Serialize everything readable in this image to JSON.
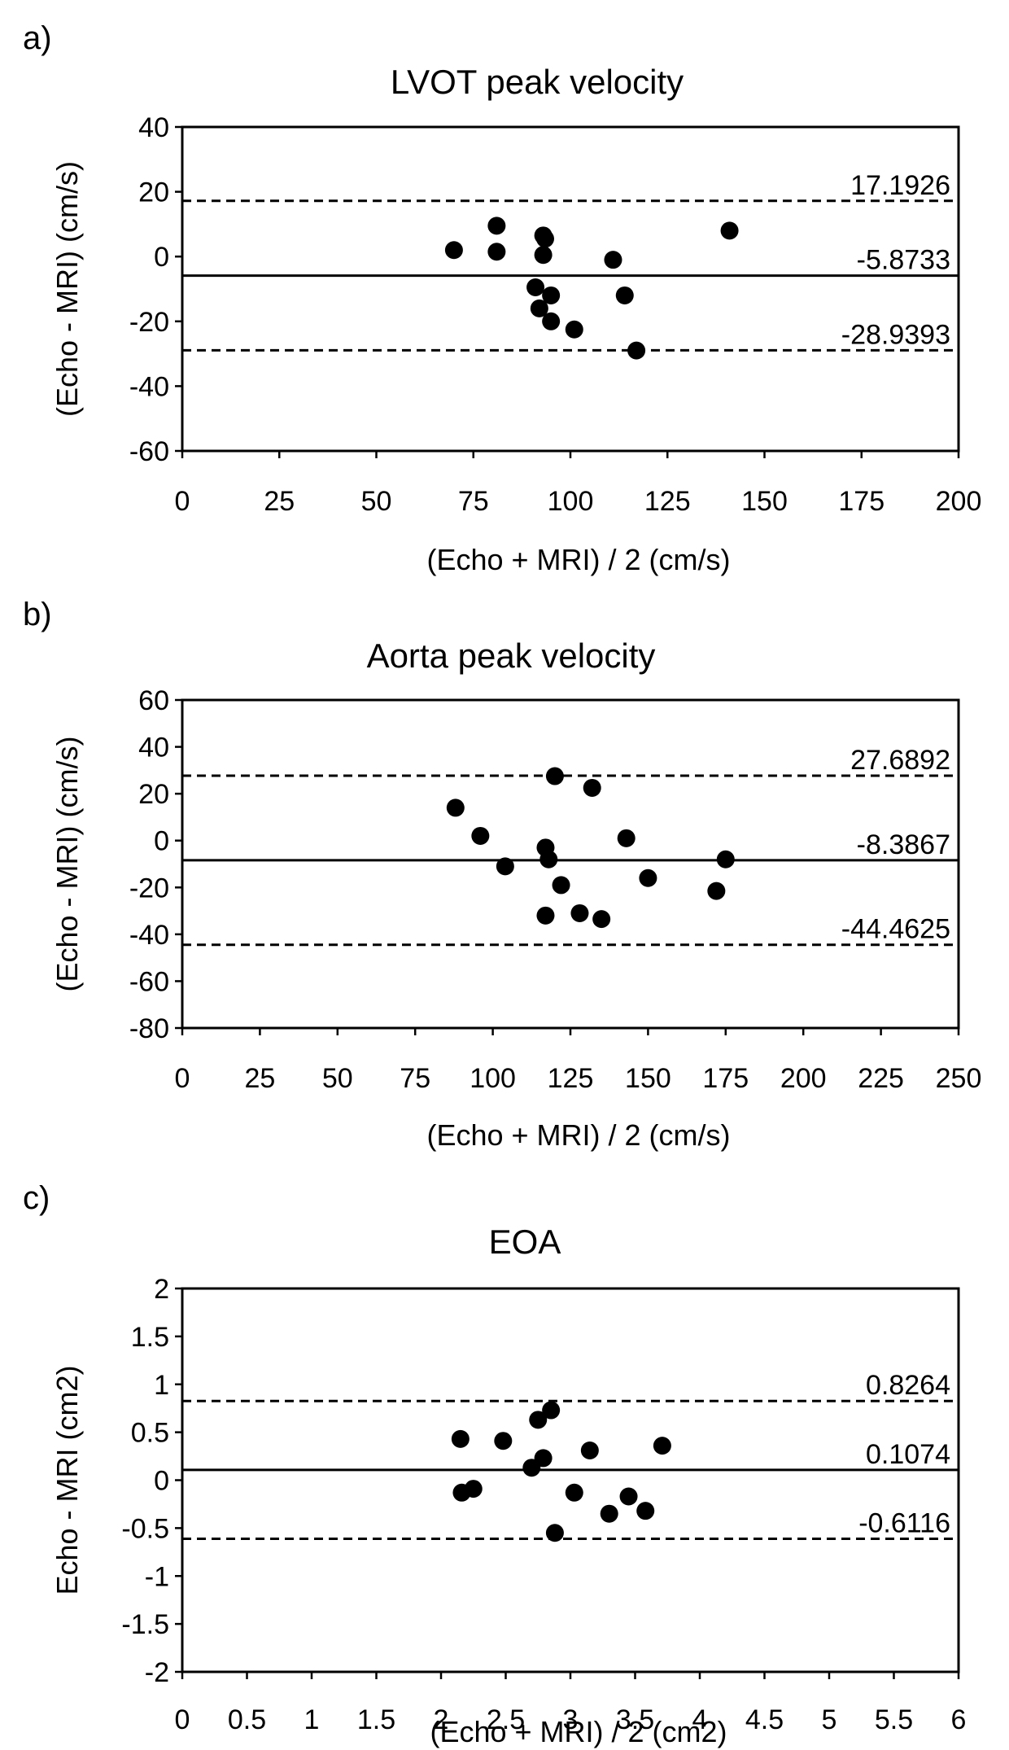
{
  "chart_data": [
    {
      "type": "scatter",
      "panel_label": "a)",
      "title": "LVOT peak velocity",
      "xlabel": "(Echo + MRI) / 2 (cm/s)",
      "ylabel": "(Echo - MRI) (cm/s)",
      "xlim": [
        0,
        200
      ],
      "ylim": [
        -60,
        40
      ],
      "xticks": [
        0,
        25,
        50,
        75,
        100,
        125,
        150,
        175,
        200
      ],
      "yticks": [
        40,
        20,
        0,
        -20,
        -40,
        -60
      ],
      "xtick_labels": [
        "0",
        "25",
        "50",
        "75",
        "100",
        "125",
        "150",
        "175",
        "200"
      ],
      "ytick_labels": [
        "40",
        "20",
        "0",
        "-20",
        "-40",
        "-60"
      ],
      "lines": [
        {
          "kind": "upper_limit",
          "style": "dashed",
          "value": 17.1926,
          "label": "17.1926"
        },
        {
          "kind": "mean",
          "style": "solid",
          "value": -5.8733,
          "label": "-5.8733"
        },
        {
          "kind": "lower_limit",
          "style": "dashed",
          "value": -28.9393,
          "label": "-28.9393"
        }
      ],
      "points": [
        {
          "x": 70,
          "y": 2
        },
        {
          "x": 81,
          "y": 9.5
        },
        {
          "x": 81,
          "y": 1.5
        },
        {
          "x": 93,
          "y": 6.5
        },
        {
          "x": 93.5,
          "y": 5.5
        },
        {
          "x": 93,
          "y": 0.5
        },
        {
          "x": 91,
          "y": -9.5
        },
        {
          "x": 92,
          "y": -16
        },
        {
          "x": 95,
          "y": -12
        },
        {
          "x": 95,
          "y": -20
        },
        {
          "x": 101,
          "y": -22.5
        },
        {
          "x": 111,
          "y": -1
        },
        {
          "x": 114,
          "y": -12
        },
        {
          "x": 117,
          "y": -29
        },
        {
          "x": 141,
          "y": 8
        }
      ]
    },
    {
      "type": "scatter",
      "panel_label": "b)",
      "title": "Aorta peak velocity",
      "xlabel": "(Echo + MRI) / 2 (cm/s)",
      "ylabel": "(Echo - MRI) (cm/s)",
      "xlim": [
        0,
        250
      ],
      "ylim": [
        -80,
        60
      ],
      "xticks": [
        0,
        25,
        50,
        75,
        100,
        125,
        150,
        175,
        200,
        225,
        250
      ],
      "yticks": [
        60,
        40,
        20,
        0,
        -20,
        -40,
        -60,
        -80
      ],
      "xtick_labels": [
        "0",
        "25",
        "50",
        "75",
        "100",
        "125",
        "150",
        "175",
        "200",
        "225",
        "250"
      ],
      "ytick_labels": [
        "60",
        "40",
        "20",
        "0",
        "-20",
        "-40",
        "-60",
        "-80"
      ],
      "lines": [
        {
          "kind": "upper_limit",
          "style": "dashed",
          "value": 27.6892,
          "label": "27.6892"
        },
        {
          "kind": "mean",
          "style": "solid",
          "value": -8.3867,
          "label": "-8.3867"
        },
        {
          "kind": "lower_limit",
          "style": "dashed",
          "value": -44.4625,
          "label": "-44.4625"
        }
      ],
      "points": [
        {
          "x": 88,
          "y": 14
        },
        {
          "x": 96,
          "y": 2
        },
        {
          "x": 104,
          "y": -11
        },
        {
          "x": 117,
          "y": -3
        },
        {
          "x": 118,
          "y": -8
        },
        {
          "x": 117,
          "y": -32
        },
        {
          "x": 120,
          "y": 27.5
        },
        {
          "x": 122,
          "y": -19
        },
        {
          "x": 128,
          "y": -31
        },
        {
          "x": 132,
          "y": 22.5
        },
        {
          "x": 135,
          "y": -33.5
        },
        {
          "x": 143,
          "y": 1
        },
        {
          "x": 150,
          "y": -16
        },
        {
          "x": 172,
          "y": -21.5
        },
        {
          "x": 175,
          "y": -8
        }
      ]
    },
    {
      "type": "scatter",
      "panel_label": "c)",
      "title": "EOA",
      "xlabel": "(Echo + MRI) / 2 (cm2)",
      "ylabel": "Echo - MRI (cm2)",
      "xlim": [
        0,
        6
      ],
      "ylim": [
        -2,
        2
      ],
      "xticks": [
        0,
        0.5,
        1,
        1.5,
        2,
        2.5,
        3,
        3.5,
        4,
        4.5,
        5,
        5.5,
        6
      ],
      "yticks": [
        2,
        1.5,
        1,
        0.5,
        0,
        -0.5,
        -1,
        -1.5,
        -2
      ],
      "xtick_labels": [
        "0",
        "0.5",
        "1",
        "1.5",
        "2",
        "2.5",
        "3",
        "3.5",
        "4",
        "4.5",
        "5",
        "5.5",
        "6"
      ],
      "ytick_labels": [
        "2",
        "1.5",
        "1",
        "0.5",
        "0",
        "-0.5",
        "-1",
        "-1.5",
        "-2"
      ],
      "lines": [
        {
          "kind": "upper_limit",
          "style": "dashed",
          "value": 0.8264,
          "label": "0.8264"
        },
        {
          "kind": "mean",
          "style": "solid",
          "value": 0.1074,
          "label": "0.1074"
        },
        {
          "kind": "lower_limit",
          "style": "dashed",
          "value": -0.6116,
          "label": "-0.6116"
        }
      ],
      "points": [
        {
          "x": 2.15,
          "y": 0.43
        },
        {
          "x": 2.16,
          "y": -0.13
        },
        {
          "x": 2.25,
          "y": -0.09
        },
        {
          "x": 2.48,
          "y": 0.41
        },
        {
          "x": 2.7,
          "y": 0.13
        },
        {
          "x": 2.75,
          "y": 0.63
        },
        {
          "x": 2.79,
          "y": 0.23
        },
        {
          "x": 2.85,
          "y": 0.73
        },
        {
          "x": 2.88,
          "y": -0.55
        },
        {
          "x": 3.03,
          "y": -0.13
        },
        {
          "x": 3.15,
          "y": 0.31
        },
        {
          "x": 3.3,
          "y": -0.35
        },
        {
          "x": 3.45,
          "y": -0.17
        },
        {
          "x": 3.58,
          "y": -0.32
        },
        {
          "x": 3.71,
          "y": 0.36
        }
      ]
    }
  ]
}
